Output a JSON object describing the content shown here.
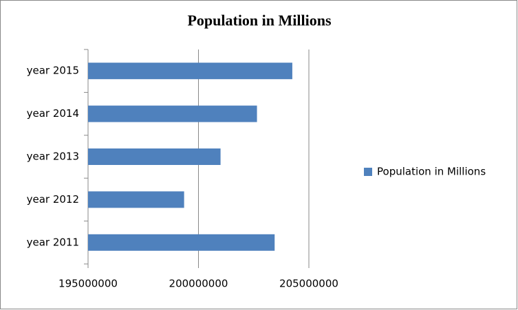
{
  "chart_data": {
    "type": "bar",
    "orientation": "horizontal",
    "title": "Population in Millions",
    "categories": [
      "year 2011",
      "year 2012",
      "year 2013",
      "year 2014",
      "year 2015"
    ],
    "series": [
      {
        "name": "Population in Millions",
        "color": "#4f81bd",
        "values": [
          203450000,
          199350000,
          201000000,
          202650000,
          204250000
        ]
      }
    ],
    "xlim": [
      195000000,
      205000000
    ],
    "xticks": [
      195000000,
      200000000,
      205000000
    ],
    "grid": true,
    "legend": "right"
  }
}
